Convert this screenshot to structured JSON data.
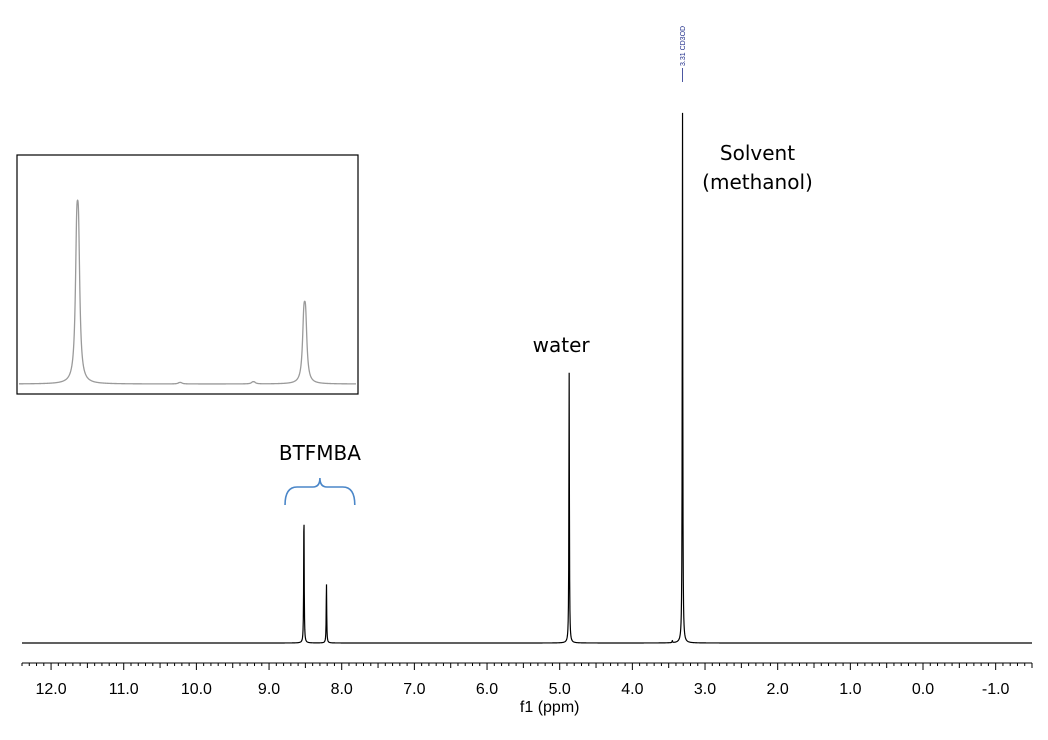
{
  "chart_data": {
    "type": "line",
    "title": "",
    "xlabel": "f1 (ppm)",
    "ylabel": "",
    "xlim": [
      12.4,
      -1.5
    ],
    "x_reversed": true,
    "ylim": [
      0,
      1.08
    ],
    "grid": false,
    "legend": "none",
    "ticks_major": [
      12.0,
      11.0,
      10.0,
      9.0,
      8.0,
      7.0,
      6.0,
      5.0,
      4.0,
      3.0,
      2.0,
      1.0,
      0.0,
      -1.0
    ],
    "tick_labels": [
      "12.0",
      "11.0",
      "10.0",
      "9.0",
      "8.0",
      "7.0",
      "6.0",
      "5.0",
      "4.0",
      "3.0",
      "2.0",
      "1.0",
      "0.0",
      "-1.0"
    ],
    "series": [
      {
        "color": "#000000",
        "peaks": [
          {
            "ppm": 8.52,
            "intensity": 0.252
          },
          {
            "ppm": 8.21,
            "intensity": 0.113
          },
          {
            "ppm": 4.87,
            "intensity": 0.502
          },
          {
            "ppm": 3.31,
            "intensity": 1.0
          },
          {
            "ppm": 3.45,
            "intensity": 0.004
          }
        ]
      }
    ],
    "peak_label": {
      "ppm": 3.31,
      "text": "3.31 CD3OD",
      "color": "#1f2d8a"
    },
    "annotations": [
      {
        "text": "Solvent",
        "ppm": 3.31
      },
      {
        "text": "(methanol)",
        "ppm": 3.31
      },
      {
        "text": "water",
        "ppm": 4.87
      },
      {
        "text": "BTFMBA",
        "ppm_range": [
          8.78,
          7.82
        ],
        "bracket_color": "#4a86c8"
      }
    ],
    "inset": {
      "description_range_ppm": [
        8.62,
        8.12
      ],
      "line_color": "#9a9a9a",
      "peaks": [
        {
          "ppm": 8.52,
          "intensity": 1.0
        },
        {
          "ppm": 8.21,
          "intensity": 0.45
        },
        {
          "ppm": 8.38,
          "intensity": 0.008
        },
        {
          "ppm": 8.28,
          "intensity": 0.012
        }
      ]
    }
  }
}
